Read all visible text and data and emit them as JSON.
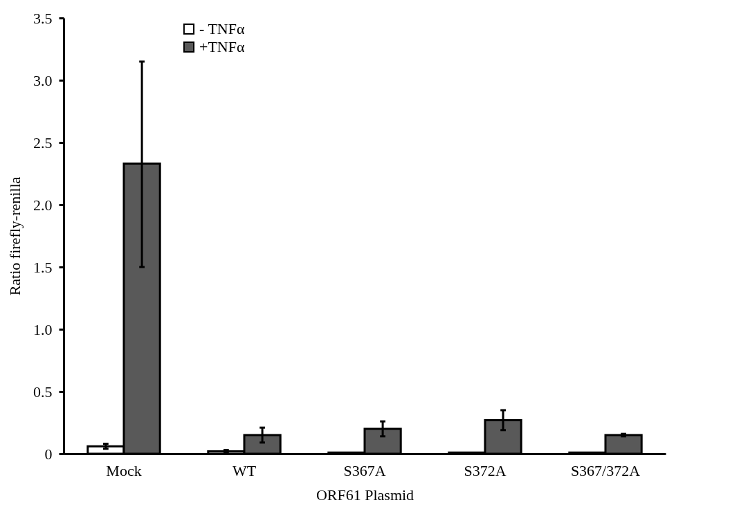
{
  "chart_data": {
    "type": "bar",
    "xlabel": "ORF61 Plasmid",
    "ylabel": "Ratio firefly-renilla",
    "categories": [
      "Mock",
      "WT",
      "S367A",
      "S372A",
      "S367/372A"
    ],
    "series": [
      {
        "name": "- TNFα",
        "color": "#ffffff",
        "values": [
          0.06,
          0.02,
          0.01,
          0.01,
          0.01
        ],
        "errors": [
          0.02,
          0.01,
          null,
          null,
          null
        ]
      },
      {
        "name": "+TNFα",
        "color": "#595959",
        "values": [
          2.33,
          0.15,
          0.2,
          0.27,
          0.15
        ],
        "errors": [
          [
            1.5,
            3.15
          ],
          0.06,
          0.06,
          0.08,
          0.01
        ]
      }
    ],
    "ylim": [
      0,
      3.5
    ],
    "yticks": [
      0,
      {
        "value": 0.5,
        "label": "0.5"
      },
      {
        "value": 1,
        "label": "1.0"
      },
      {
        "value": 1.5,
        "label": "1.5"
      },
      {
        "value": 2,
        "label": "2.0"
      },
      {
        "value": 2.5,
        "label": "2.5"
      },
      {
        "value": 3,
        "label": "3.0"
      },
      {
        "value": 3.5,
        "label": "3.5"
      }
    ],
    "grid": false,
    "legend": "top left"
  }
}
